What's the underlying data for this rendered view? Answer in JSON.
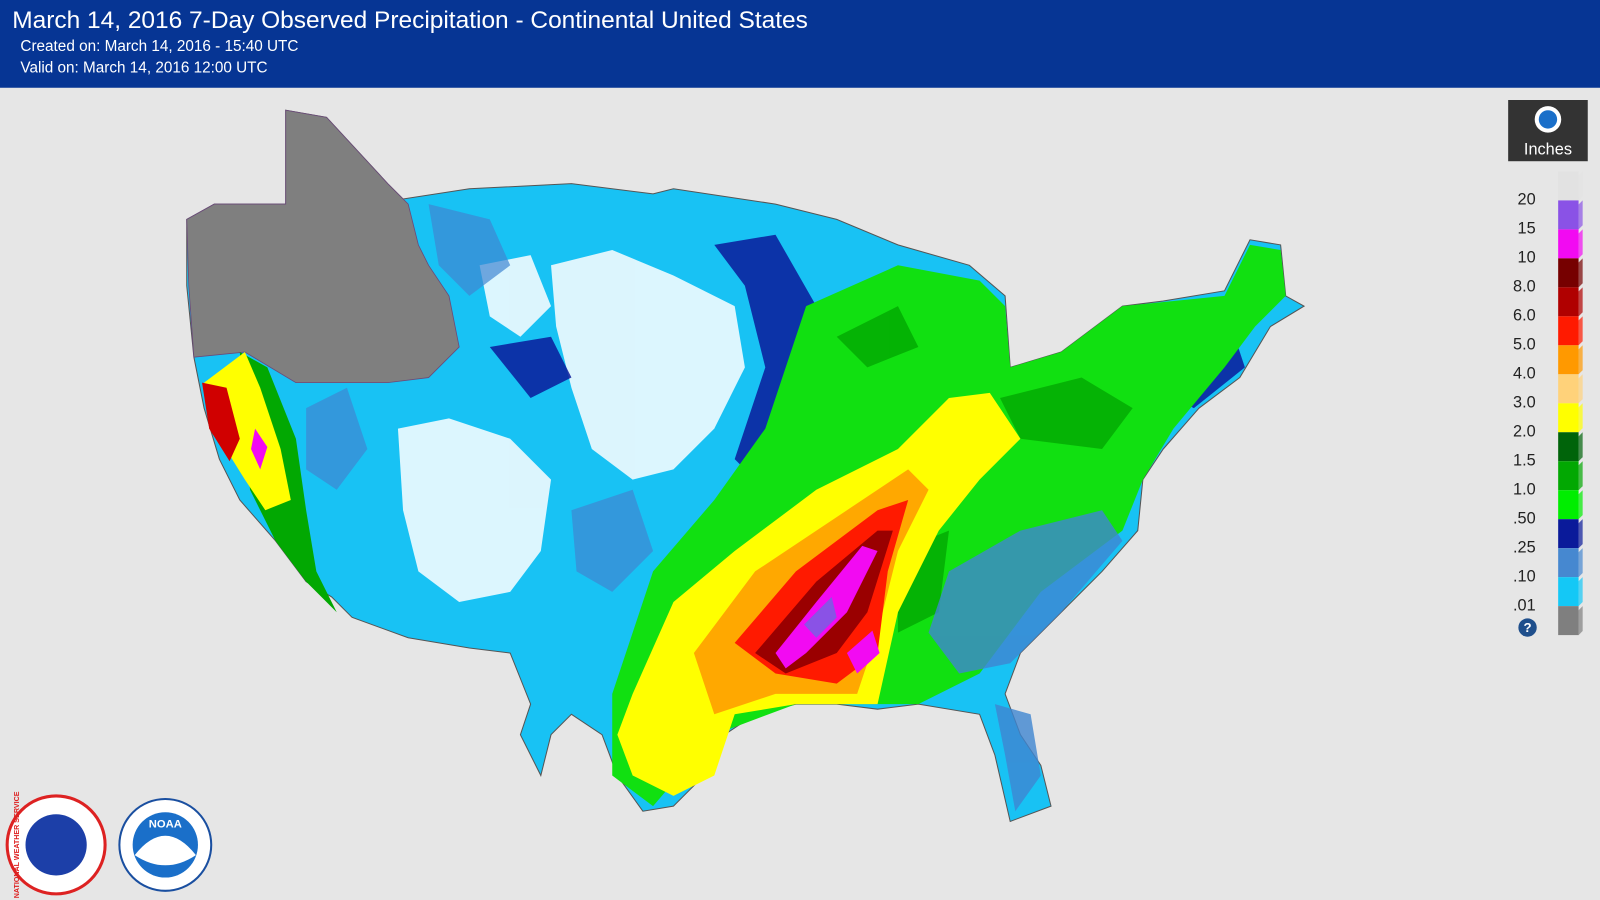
{
  "header": {
    "title": "March 14, 2016 7-Day Observed Precipitation - Continental United States",
    "created": "Created on: March 14, 2016 - 15:40 UTC",
    "valid": "Valid on: March 14, 2016 12:00 UTC"
  },
  "legend": {
    "unit": "Inches",
    "labels": [
      "20",
      "15",
      "10",
      "8.0",
      "6.0",
      "5.0",
      "4.0",
      "3.0",
      "2.0",
      "1.5",
      "1.0",
      ".50",
      ".25",
      ".10",
      ".01"
    ],
    "colors": [
      "#e2e2e2",
      "#8a52e6",
      "#f20af2",
      "#760000",
      "#b00000",
      "#ff1a00",
      "#ff9900",
      "#ffd27a",
      "#ffff00",
      "#00640a",
      "#02a802",
      "#00ee00",
      "#0a1a9a",
      "#4688d0",
      "#14c8f6",
      "#7f7f7f"
    ],
    "help": "?"
  },
  "logos": {
    "nws": "NATIONAL WEATHER SERVICE",
    "noaa": "NOAA"
  }
}
